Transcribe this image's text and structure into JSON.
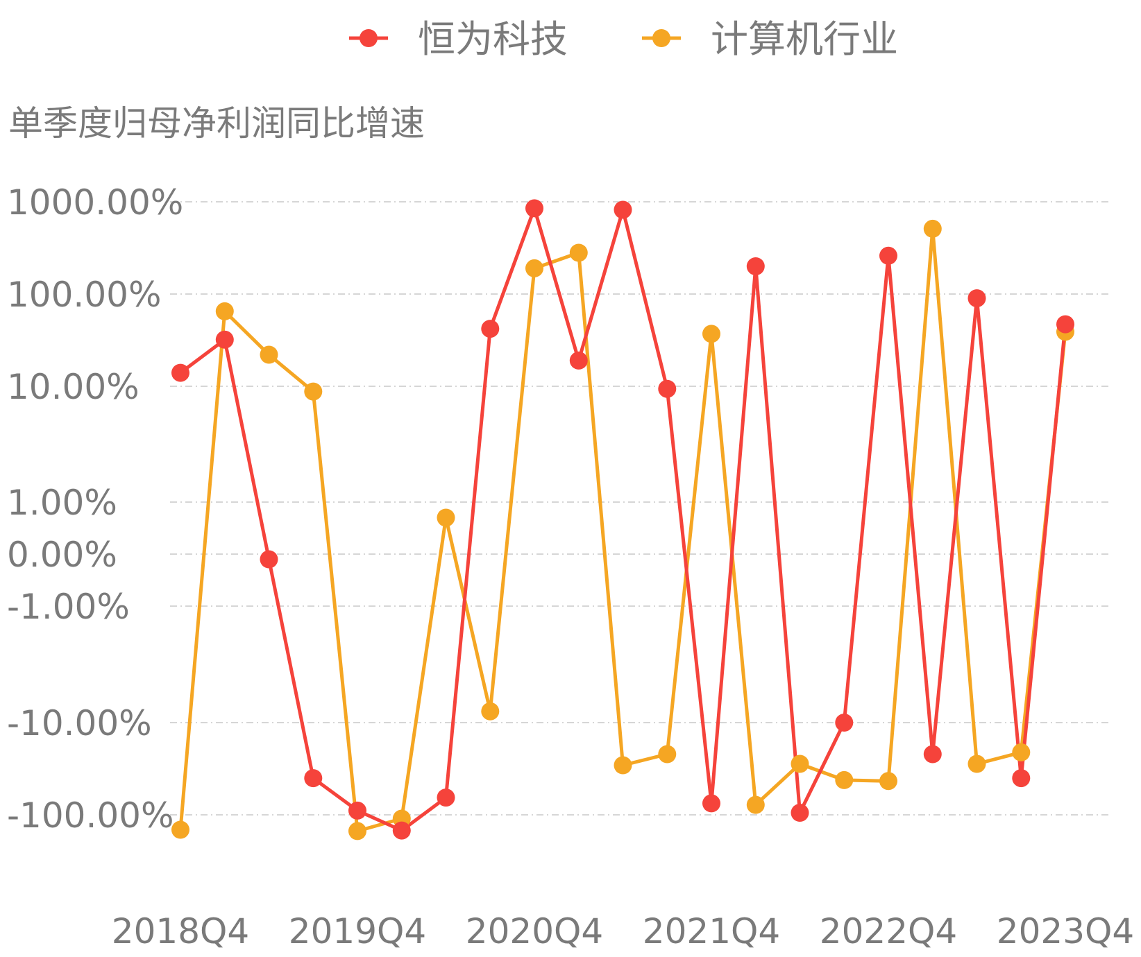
{
  "chart_data": {
    "type": "line",
    "ylabel": "单季度归母净利润同比增速",
    "y_scale": "symmetric-log",
    "y_ticks": [
      "1000.00%",
      "100.00%",
      "10.00%",
      "1.00%",
      "0.00%",
      "-1.00%",
      "-10.00%",
      "-100.00%"
    ],
    "x": [
      "2018Q4",
      "2019Q1",
      "2019Q2",
      "2019Q3",
      "2019Q4",
      "2020Q1",
      "2020Q2",
      "2020Q3",
      "2020Q4",
      "2021Q1",
      "2021Q2",
      "2021Q3",
      "2021Q4",
      "2022Q1",
      "2022Q2",
      "2022Q3",
      "2022Q4",
      "2023Q1",
      "2023Q2",
      "2023Q3",
      "2023Q4"
    ],
    "x_tick_labels": [
      "2018Q4",
      "2019Q4",
      "2020Q4",
      "2021Q4",
      "2022Q4",
      "2023Q4"
    ],
    "grid": true,
    "legend_position": "top-center",
    "series": [
      {
        "name": "恒为科技",
        "color": "#f5433b",
        "values": [
          14,
          32,
          -0.1,
          -40,
          -90,
          -148,
          -65,
          42,
          850,
          19,
          820,
          9.5,
          -75,
          200,
          -95,
          -10,
          260,
          -22,
          90,
          -40,
          47
        ]
      },
      {
        "name": "计算机行业",
        "color": "#f5a623",
        "values": [
          -145,
          65,
          22,
          9,
          -150,
          -110,
          0.7,
          -8,
          190,
          280,
          -29,
          -22,
          37,
          -78,
          -28,
          -42,
          -43,
          510,
          -28,
          -21,
          39
        ]
      }
    ]
  }
}
